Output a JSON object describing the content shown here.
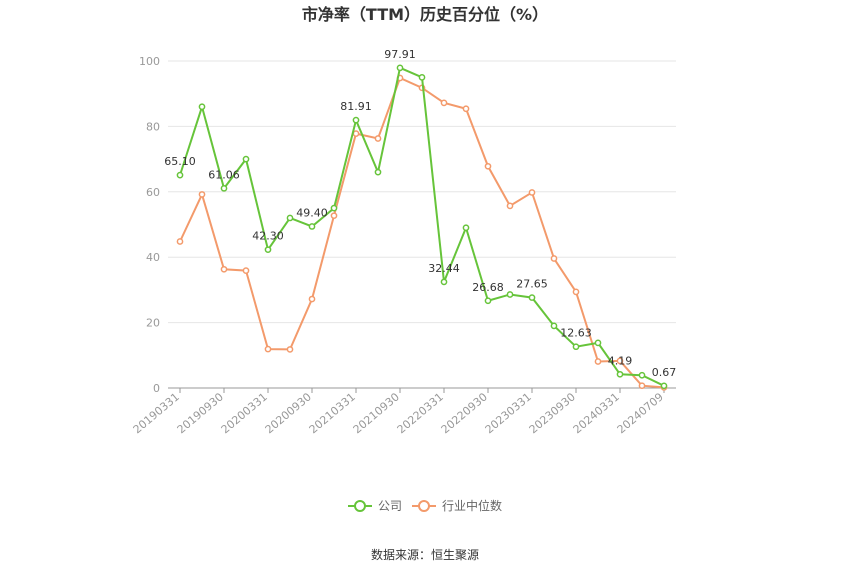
{
  "chart_data": {
    "type": "line",
    "title": "市净率（TTM）历史百分位（%）",
    "xlabel": "",
    "ylabel": "",
    "ylim": [
      0,
      100
    ],
    "yticks": [
      "0",
      "20",
      "40",
      "60",
      "80",
      "100"
    ],
    "x_tick_labels": [
      "20190331",
      "20190930",
      "20200331",
      "20200930",
      "20210331",
      "20210930",
      "20220331",
      "20220930",
      "20230331",
      "20230930",
      "20240331",
      "20240709"
    ],
    "x_tick_indices": [
      0,
      2,
      4,
      6,
      8,
      10,
      12,
      14,
      16,
      18,
      20,
      22
    ],
    "grid": true,
    "legend_position": "bottom-center",
    "series": [
      {
        "name": "公司",
        "color": "#66c43a",
        "values": [
          65.1,
          86,
          61.06,
          70,
          42.3,
          52,
          49.4,
          55,
          81.91,
          66,
          97.91,
          95,
          32.44,
          49,
          26.68,
          28.6,
          27.65,
          19,
          12.63,
          13.8,
          4.19,
          3.9,
          0.67
        ]
      },
      {
        "name": "行业中位数",
        "color": "#f39a6b",
        "values": [
          44.8,
          59.2,
          36.3,
          35.9,
          11.9,
          11.8,
          27.2,
          52.7,
          77.8,
          76.3,
          94.8,
          91.8,
          87.2,
          85.4,
          67.8,
          55.7,
          59.8,
          39.6,
          29.4,
          8.1,
          8.3,
          0.7,
          0.2
        ]
      }
    ],
    "data_labels": [
      {
        "index": 0,
        "text": "65.10"
      },
      {
        "index": 2,
        "text": "61.06"
      },
      {
        "index": 4,
        "text": "42.30"
      },
      {
        "index": 6,
        "text": "49.40"
      },
      {
        "index": 8,
        "text": "81.91"
      },
      {
        "index": 10,
        "text": "97.91"
      },
      {
        "index": 12,
        "text": "32.44"
      },
      {
        "index": 14,
        "text": "26.68"
      },
      {
        "index": 16,
        "text": "27.65"
      },
      {
        "index": 18,
        "text": "12.63"
      },
      {
        "index": 20,
        "text": "4.19"
      },
      {
        "index": 22,
        "text": "0.67"
      }
    ],
    "source": "数据来源：恒生聚源"
  }
}
